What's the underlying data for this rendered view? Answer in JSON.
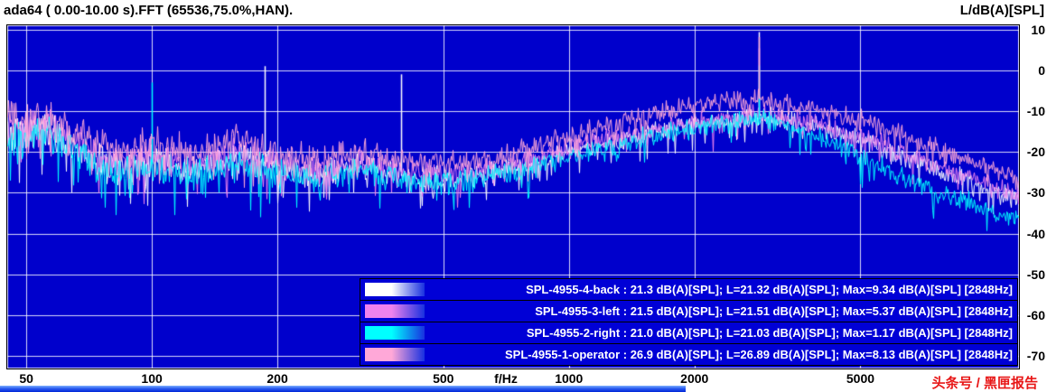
{
  "chart_data": {
    "type": "line",
    "title": "ada64 ( 0.00-10.00 s).FFT (65536,75.0%,HAN).",
    "xlabel": "f/Hz",
    "ylabel": "L/dB(A)[SPL]",
    "x_scale": "log",
    "x_range": [
      45,
      12000
    ],
    "y_range": [
      -73,
      11
    ],
    "x_ticks": [
      50,
      100,
      200,
      500,
      1000,
      2000,
      5000
    ],
    "y_ticks": [
      10,
      0,
      -10,
      -20,
      -30,
      -40,
      -50,
      -60,
      -70
    ],
    "grid": true,
    "background": "#0000cc",
    "grid_color": "#ffffff",
    "legend_position": "inside-bottom-right",
    "noise_profile": [
      [
        45,
        5.5
      ],
      [
        150,
        5
      ],
      [
        300,
        4
      ],
      [
        600,
        3.5
      ],
      [
        1000,
        3
      ],
      [
        3000,
        3
      ],
      [
        12000,
        3
      ]
    ],
    "series": [
      {
        "name": "SPL-4955-4-back",
        "color": "#ffffff",
        "overall_dBA": 21.3,
        "L_dBA": 21.32,
        "max_dBA": 9.34,
        "max_freq_hz": 2848,
        "envelope": [
          [
            45,
            -16
          ],
          [
            55,
            -14
          ],
          [
            63,
            -18
          ],
          [
            80,
            -24
          ],
          [
            100,
            -22
          ],
          [
            125,
            -25
          ],
          [
            160,
            -21
          ],
          [
            200,
            -24
          ],
          [
            250,
            -26
          ],
          [
            315,
            -23
          ],
          [
            400,
            -26
          ],
          [
            500,
            -27
          ],
          [
            630,
            -25
          ],
          [
            800,
            -23
          ],
          [
            1000,
            -20
          ],
          [
            1250,
            -18
          ],
          [
            1600,
            -15
          ],
          [
            2000,
            -13
          ],
          [
            2500,
            -12
          ],
          [
            2848,
            -11.5
          ],
          [
            3150,
            -12
          ],
          [
            4000,
            -14
          ],
          [
            5000,
            -17
          ],
          [
            6300,
            -21
          ],
          [
            8000,
            -25
          ],
          [
            10000,
            -29
          ],
          [
            12000,
            -32
          ]
        ],
        "peaks": [
          [
            186,
            1.0
          ],
          [
            395,
            -1.0
          ],
          [
            2848,
            9.34
          ]
        ]
      },
      {
        "name": "SPL-4955-3-left",
        "color": "#ee82ee",
        "overall_dBA": 21.5,
        "L_dBA": 21.51,
        "max_dBA": 5.37,
        "max_freq_hz": 2848,
        "envelope": [
          [
            45,
            -15
          ],
          [
            55,
            -13
          ],
          [
            63,
            -17
          ],
          [
            80,
            -23
          ],
          [
            100,
            -21
          ],
          [
            125,
            -24
          ],
          [
            160,
            -20
          ],
          [
            200,
            -23
          ],
          [
            250,
            -25
          ],
          [
            315,
            -22
          ],
          [
            400,
            -25
          ],
          [
            500,
            -26
          ],
          [
            630,
            -24
          ],
          [
            800,
            -22
          ],
          [
            1000,
            -19
          ],
          [
            1250,
            -17
          ],
          [
            1600,
            -14.5
          ],
          [
            2000,
            -12.5
          ],
          [
            2500,
            -11.5
          ],
          [
            2848,
            -11
          ],
          [
            3150,
            -11.5
          ],
          [
            4000,
            -13.5
          ],
          [
            5000,
            -16.5
          ],
          [
            6300,
            -20
          ],
          [
            8000,
            -24
          ],
          [
            10000,
            -28
          ],
          [
            12000,
            -31
          ]
        ],
        "peaks": [
          [
            2848,
            5.37
          ]
        ]
      },
      {
        "name": "SPL-4955-2-right",
        "color": "#00ffff",
        "overall_dBA": 21.0,
        "L_dBA": 21.03,
        "max_dBA": 1.17,
        "max_freq_hz": 2848,
        "envelope": [
          [
            45,
            -17
          ],
          [
            55,
            -15
          ],
          [
            63,
            -19
          ],
          [
            80,
            -25
          ],
          [
            100,
            -23
          ],
          [
            125,
            -26
          ],
          [
            160,
            -22
          ],
          [
            200,
            -25
          ],
          [
            250,
            -27
          ],
          [
            315,
            -24
          ],
          [
            400,
            -27
          ],
          [
            500,
            -28
          ],
          [
            630,
            -26
          ],
          [
            800,
            -24
          ],
          [
            1000,
            -21
          ],
          [
            1250,
            -18.5
          ],
          [
            1600,
            -16
          ],
          [
            2000,
            -14
          ],
          [
            2500,
            -12.5
          ],
          [
            2848,
            -12
          ],
          [
            3150,
            -13
          ],
          [
            4000,
            -16.5
          ],
          [
            5000,
            -21
          ],
          [
            6300,
            -26
          ],
          [
            8000,
            -30
          ],
          [
            10000,
            -34
          ],
          [
            12000,
            -37
          ]
        ],
        "peaks": [
          [
            100,
            -3.0
          ],
          [
            2848,
            1.17
          ]
        ]
      },
      {
        "name": "SPL-4955-1-operator",
        "color": "#ffa8d8",
        "overall_dBA": 26.9,
        "L_dBA": 26.89,
        "max_dBA": 8.13,
        "max_freq_hz": 2848,
        "envelope": [
          [
            45,
            -12
          ],
          [
            55,
            -11
          ],
          [
            63,
            -14
          ],
          [
            80,
            -20
          ],
          [
            100,
            -18
          ],
          [
            125,
            -21
          ],
          [
            160,
            -17
          ],
          [
            200,
            -20
          ],
          [
            250,
            -22
          ],
          [
            315,
            -20
          ],
          [
            400,
            -22
          ],
          [
            500,
            -23
          ],
          [
            630,
            -22
          ],
          [
            800,
            -19
          ],
          [
            1000,
            -16
          ],
          [
            1250,
            -13.5
          ],
          [
            1600,
            -10.5
          ],
          [
            2000,
            -8.5
          ],
          [
            2500,
            -7.5
          ],
          [
            2848,
            -7
          ],
          [
            3150,
            -8
          ],
          [
            4000,
            -9.5
          ],
          [
            5000,
            -12
          ],
          [
            6300,
            -16
          ],
          [
            8000,
            -20
          ],
          [
            10000,
            -24
          ],
          [
            12000,
            -27
          ]
        ],
        "peaks": [
          [
            2848,
            8.13
          ]
        ]
      }
    ]
  },
  "legend": {
    "rows": [
      {
        "name": "SPL-4955-4-back",
        "color": "#ffffff",
        "text": "SPL-4955-4-back : 21.3 dB(A)[SPL]; L=21.32 dB(A)[SPL]; Max=9.34 dB(A)[SPL] [2848Hz]"
      },
      {
        "name": "SPL-4955-3-left",
        "color": "#ee82ee",
        "text": "SPL-4955-3-left : 21.5 dB(A)[SPL]; L=21.51 dB(A)[SPL]; Max=5.37 dB(A)[SPL] [2848Hz]"
      },
      {
        "name": "SPL-4955-2-right",
        "color": "#00ffff",
        "text": "SPL-4955-2-right : 21.0 dB(A)[SPL]; L=21.03 dB(A)[SPL]; Max=1.17 dB(A)[SPL] [2848Hz]"
      },
      {
        "name": "SPL-4955-1-operator",
        "color": "#ffa8d8",
        "text": "SPL-4955-1-operator : 26.9 dB(A)[SPL]; L=26.89 dB(A)[SPL]; Max=8.13 dB(A)[SPL] [2848Hz]"
      }
    ]
  },
  "watermark": {
    "text": "头条号 / 黑匣报告",
    "color": "#e81717"
  }
}
